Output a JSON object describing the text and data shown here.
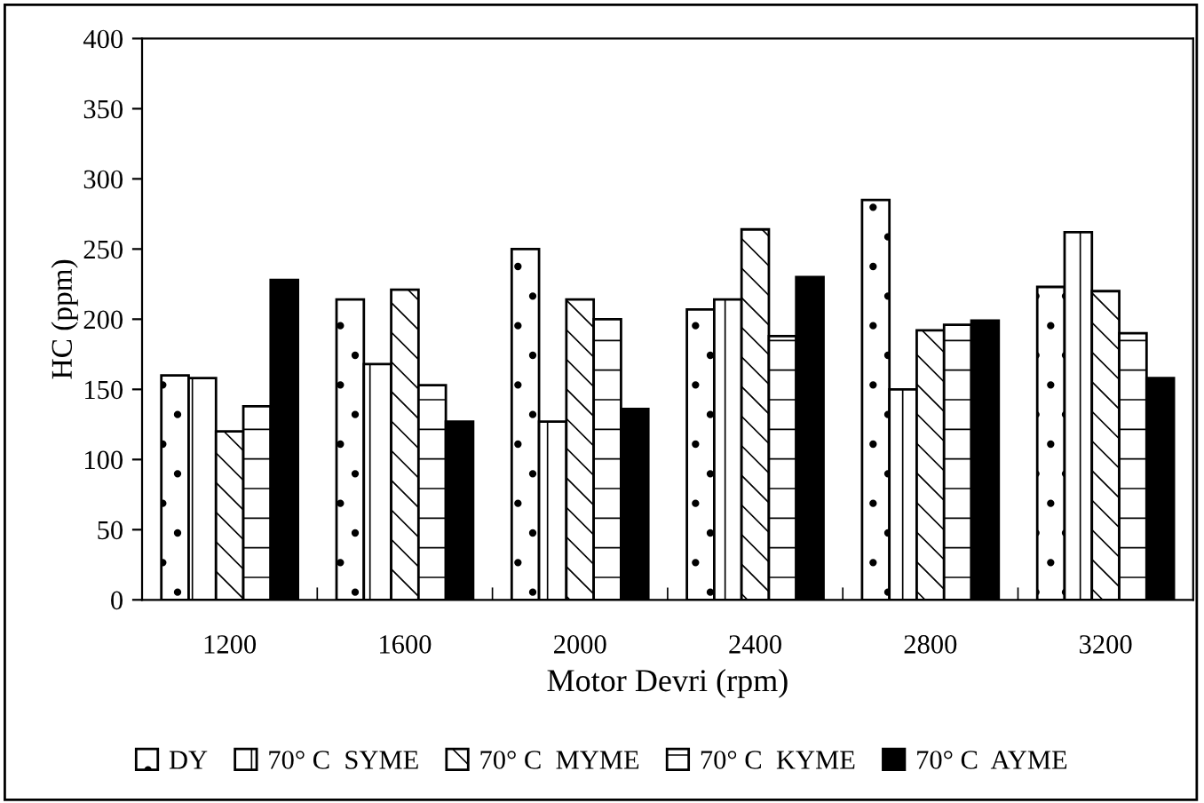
{
  "chart_data": {
    "type": "bar",
    "xlabel": "Motor Devri (rpm)",
    "ylabel": "HC (ppm)",
    "categories": [
      "1200",
      "1600",
      "2000",
      "2400",
      "2800",
      "3200"
    ],
    "series": [
      {
        "name": "DY",
        "color": "#ffffff",
        "values": [
          160,
          214,
          250,
          207,
          285,
          223
        ]
      },
      {
        "name": "70° C  SYME",
        "color": "#ffffff",
        "values": [
          158,
          168,
          127,
          214,
          150,
          262
        ]
      },
      {
        "name": "70° C  MYME",
        "color": "#ffffff",
        "values": [
          120,
          221,
          214,
          264,
          192,
          220
        ]
      },
      {
        "name": "70° C  KYME",
        "color": "#ffffff",
        "values": [
          138,
          153,
          200,
          188,
          196,
          190
        ]
      },
      {
        "name": "70° C  AYME",
        "color": "#000000",
        "values": [
          228,
          127,
          136,
          230,
          199,
          158
        ]
      }
    ],
    "ylim": [
      0,
      400
    ],
    "yticks": [
      0,
      50,
      100,
      150,
      200,
      250,
      300,
      350,
      400
    ],
    "grid": false,
    "legend": "bottom"
  }
}
